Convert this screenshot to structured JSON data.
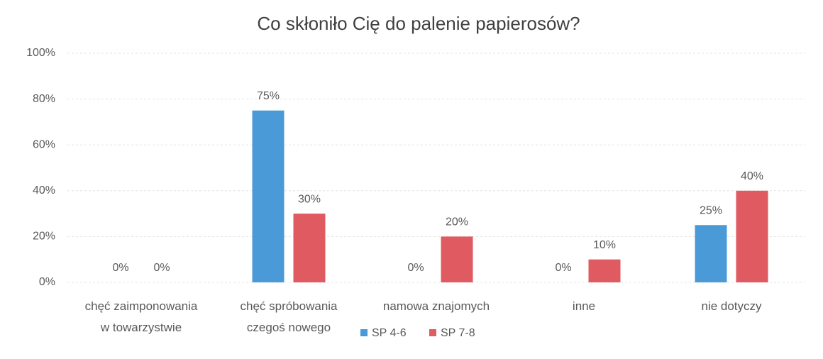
{
  "chart_data": {
    "type": "bar",
    "title": "Co skłoniło Cię do palenie papierosów?",
    "categories": [
      "chęć zaimponowania\nw towarzystwie",
      "chęć spróbowania\nczegoś nowego",
      "namowa znajomych",
      "inne",
      "nie dotyczy"
    ],
    "series": [
      {
        "name": "SP 4-6",
        "color": "#4a9ad8",
        "values": [
          0,
          75,
          0,
          0,
          25
        ],
        "value_labels": [
          "0%",
          "75%",
          "0%",
          "0%",
          "25%"
        ]
      },
      {
        "name": "SP 7-8",
        "color": "#e05a62",
        "values": [
          0,
          30,
          20,
          10,
          40
        ],
        "value_labels": [
          "0%",
          "30%",
          "20%",
          "10%",
          "40%"
        ]
      }
    ],
    "ylim": [
      0,
      100
    ],
    "yticks": [
      {
        "value": 0,
        "label": "0%"
      },
      {
        "value": 20,
        "label": "20%"
      },
      {
        "value": 40,
        "label": "40%"
      },
      {
        "value": 60,
        "label": "60%"
      },
      {
        "value": 80,
        "label": "80%"
      },
      {
        "value": 100,
        "label": "100%"
      }
    ],
    "grid": true,
    "legend": "bottom"
  }
}
